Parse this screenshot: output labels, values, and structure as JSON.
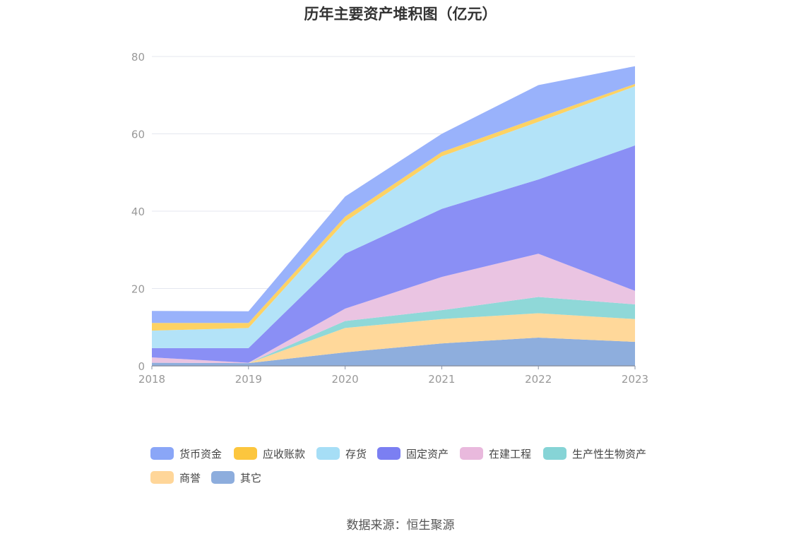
{
  "title": "历年主要资产堆积图（亿元）",
  "source": "数据来源：恒生聚源",
  "chart_data": {
    "type": "area",
    "stacked": true,
    "categories": [
      "2018",
      "2019",
      "2020",
      "2021",
      "2022",
      "2023"
    ],
    "ylim": [
      0,
      80
    ],
    "yticks": [
      0,
      20,
      40,
      60,
      80
    ],
    "grid": true,
    "legend_position": "bottom",
    "series": [
      {
        "name": "其它",
        "color": "#8eaedd",
        "values": [
          0.8,
          0.7,
          3.5,
          5.8,
          7.3,
          6.2
        ]
      },
      {
        "name": "商誉",
        "color": "#ffd89a",
        "values": [
          0,
          0,
          6.3,
          6.3,
          6.3,
          5.9
        ]
      },
      {
        "name": "生产性生物资产",
        "color": "#8fd8d8",
        "values": [
          0,
          0,
          1.8,
          2.3,
          4.2,
          3.8
        ]
      },
      {
        "name": "在建工程",
        "color": "#eac4e2",
        "values": [
          1.4,
          0.1,
          3.2,
          8.6,
          11.2,
          3.5
        ]
      },
      {
        "name": "固定资产",
        "color": "#8a8ff5",
        "values": [
          2.4,
          3.8,
          14.2,
          17.6,
          19.2,
          37.6
        ]
      },
      {
        "name": "存货",
        "color": "#b3e3f8",
        "values": [
          4.5,
          5.2,
          8.3,
          13.6,
          14.9,
          15.3
        ]
      },
      {
        "name": "应收账款",
        "color": "#fdd264",
        "values": [
          2.0,
          1.3,
          1.3,
          1.1,
          1.1,
          0.6
        ]
      },
      {
        "name": "货币资金",
        "color": "#99b2fb",
        "values": [
          3.1,
          3.0,
          5.2,
          4.7,
          8.4,
          4.6
        ]
      }
    ]
  },
  "legend": [
    {
      "name": "货币资金",
      "color": "#8aa6f7"
    },
    {
      "name": "应收账款",
      "color": "#fcc63e"
    },
    {
      "name": "存货",
      "color": "#a6def6"
    },
    {
      "name": "固定资产",
      "color": "#7b7ff2"
    },
    {
      "name": "在建工程",
      "color": "#e9b9dd"
    },
    {
      "name": "生产性生物资产",
      "color": "#86d4d6"
    },
    {
      "name": "商誉",
      "color": "#ffd699"
    },
    {
      "name": "其它",
      "color": "#8daddd"
    }
  ]
}
